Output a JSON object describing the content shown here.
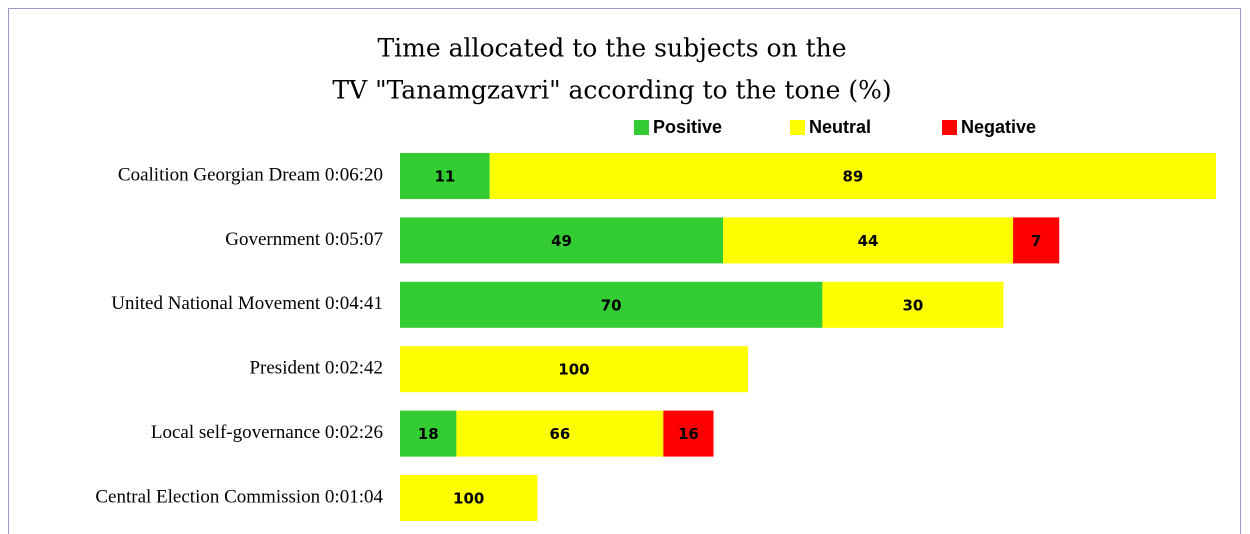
{
  "chart_data": {
    "type": "bar",
    "orientation": "horizontal",
    "stacked": true,
    "title": [
      "Time allocated to the subjects on the",
      "TV \"Tanamgzavri\" according to the tone (%)"
    ],
    "categories": [
      "Coalition Georgian Dream 0:06:20",
      "Government 0:05:07",
      "United National Movement 0:04:41",
      "President 0:02:42",
      "Local self-governance 0:02:26",
      "Central Election Commission 0:01:04"
    ],
    "series": [
      {
        "name": "Positive",
        "color": "#33cc33",
        "values": [
          11,
          49,
          70,
          null,
          18,
          null
        ]
      },
      {
        "name": "Neutral",
        "color": "#ffff00",
        "values": [
          89,
          44,
          30,
          100,
          66,
          100
        ]
      },
      {
        "name": "Negative",
        "color": "#ff0000",
        "values": [
          null,
          7,
          null,
          null,
          16,
          null
        ]
      }
    ],
    "legend": "top"
  }
}
